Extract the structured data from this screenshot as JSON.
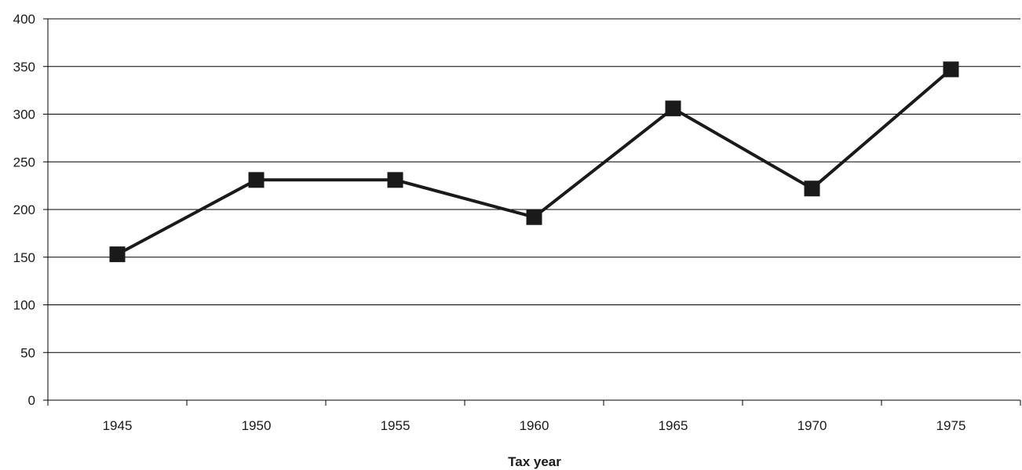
{
  "chart_data": {
    "type": "line",
    "title": "",
    "xlabel": "Tax year",
    "ylabel": "",
    "categories": [
      "1945",
      "1950",
      "1955",
      "1960",
      "1965",
      "1970",
      "1975"
    ],
    "series": [
      {
        "values": [
          153,
          231,
          231,
          192,
          306,
          222,
          347
        ]
      }
    ],
    "ylim": [
      0,
      400
    ],
    "yticks": [
      "0",
      "50",
      "100",
      "150",
      "200",
      "250",
      "300",
      "350",
      "400"
    ],
    "grid": "horizontal",
    "legend": "none",
    "colors": {
      "line": "#1a1a1a",
      "marker": "#1a1a1a",
      "grid": "#000000"
    },
    "marker": "square"
  }
}
